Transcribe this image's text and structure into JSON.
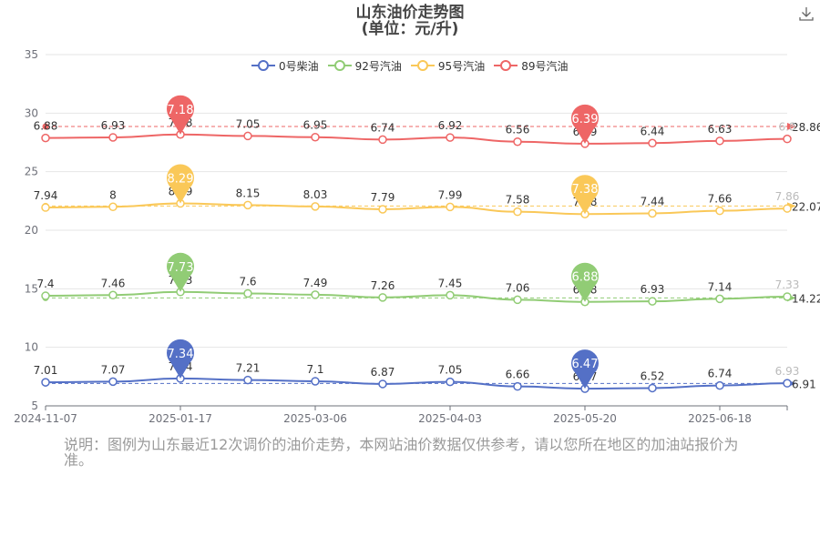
{
  "title": {
    "line1": "山东油价走势图",
    "line2": "(单位：元/升)"
  },
  "note": "说明：图例为山东最近12次调价的油价走势，本网站油价数据仅供参考，请以您所在地区的加油站报价为准。",
  "download_icon": "download-icon",
  "chart_data": {
    "type": "line",
    "title": "山东油价走势图",
    "subtitle": "(单位：元/升)",
    "x_tick_labels": [
      "2024-11-07",
      "2025-01-17",
      "2025-03-06",
      "2025-04-03",
      "2025-05-20",
      "2025-06-18"
    ],
    "ylim": [
      5,
      35
    ],
    "y_ticks": [
      5,
      10,
      15,
      20,
      25,
      30,
      35
    ],
    "legend_position": "top",
    "grid": true,
    "series": [
      {
        "name": "0号柴油",
        "color": "#5470c6",
        "offset": 0,
        "values": [
          7.01,
          7.07,
          7.34,
          7.21,
          7.1,
          6.87,
          7.05,
          6.66,
          6.47,
          6.52,
          6.74,
          6.93
        ],
        "max": 7.34,
        "min": 6.47,
        "avg": 6.91
      },
      {
        "name": "92号汽油",
        "color": "#91cc75",
        "offset": 7,
        "values": [
          7.4,
          7.46,
          7.73,
          7.6,
          7.49,
          7.26,
          7.45,
          7.06,
          6.88,
          6.93,
          7.14,
          7.33
        ],
        "max": 7.73,
        "min": 6.88,
        "avg": 14.22
      },
      {
        "name": "95号汽油",
        "color": "#fac858",
        "offset": 14,
        "values": [
          7.94,
          8,
          8.29,
          8.15,
          8.03,
          7.79,
          7.99,
          7.58,
          7.38,
          7.44,
          7.66,
          7.86
        ],
        "max": 8.29,
        "min": 7.38,
        "avg": 22.07
      },
      {
        "name": "89号汽油",
        "color": "#ee6666",
        "offset": 21,
        "values": [
          6.88,
          6.93,
          7.18,
          7.05,
          6.95,
          6.74,
          6.92,
          6.56,
          6.39,
          6.44,
          6.63,
          6.8
        ],
        "max": 7.18,
        "min": 6.39,
        "avg": 28.86
      }
    ]
  }
}
